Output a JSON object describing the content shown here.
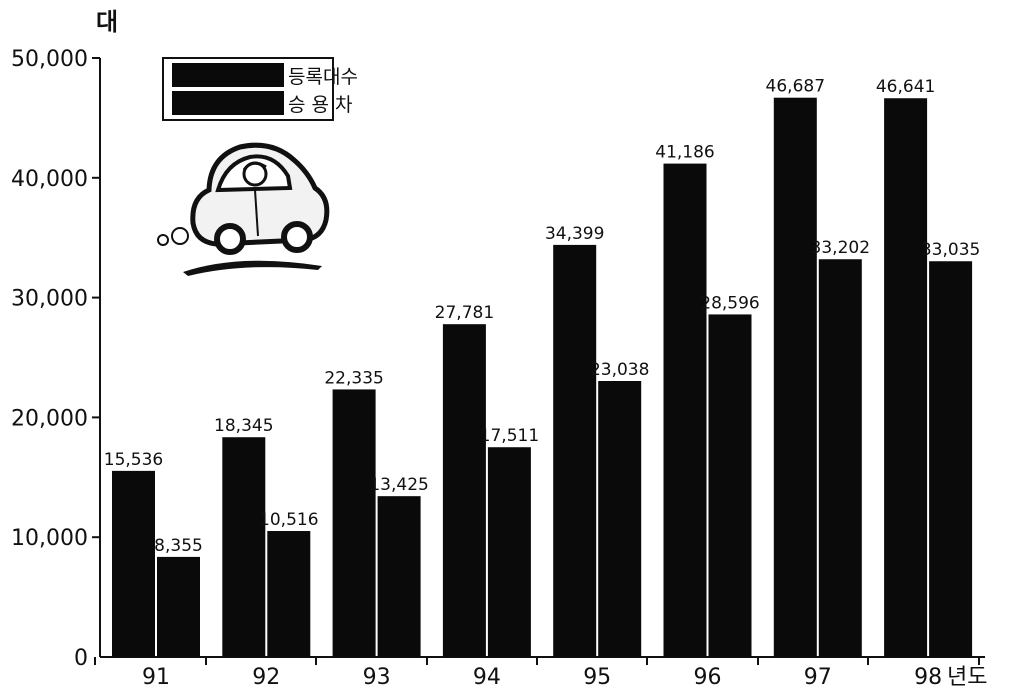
{
  "chart_data": {
    "type": "bar",
    "categories": [
      "91",
      "92",
      "93",
      "94",
      "95",
      "96",
      "97",
      "98"
    ],
    "series": [
      {
        "name": "등록대수",
        "values": [
          15536,
          18345,
          22335,
          27781,
          34399,
          41186,
          46687,
          46641
        ]
      },
      {
        "name": "승 용 차",
        "values": [
          8355,
          10516,
          13425,
          17511,
          23038,
          28596,
          33202,
          33035
        ]
      }
    ],
    "data_labels": [
      [
        "15,536",
        "18,345",
        "22,335",
        "27,781",
        "34,399",
        "41,186",
        "46,687",
        "46,641"
      ],
      [
        "8,355",
        "10,516",
        "13,425",
        "17,511",
        "23,038",
        "28,596",
        "33,202",
        "33,035"
      ]
    ],
    "ylabel": "대",
    "xlabel": "년도",
    "yticks": [
      0,
      10000,
      20000,
      30000,
      40000,
      50000
    ],
    "ytick_labels": [
      "0",
      "10,000",
      "20,000",
      "30,000",
      "40,000",
      "50,000"
    ],
    "ylim": [
      0,
      50000
    ],
    "grid": false,
    "legend_position": "top-left",
    "colors": {
      "bars": "#0a0a0a",
      "axis": "#111111"
    },
    "decoration": "car-cartoon"
  }
}
